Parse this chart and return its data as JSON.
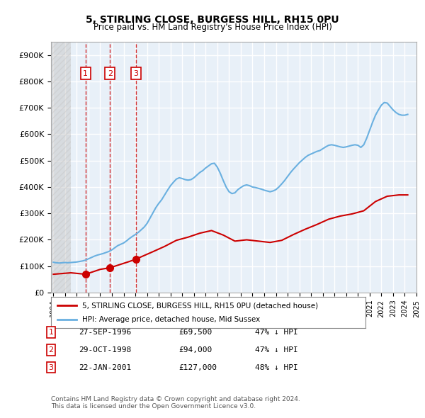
{
  "title": "5, STIRLING CLOSE, BURGESS HILL, RH15 0PU",
  "subtitle": "Price paid vs. HM Land Registry's House Price Index (HPI)",
  "xlabel": "",
  "ylabel": "",
  "ylim": [
    0,
    950000
  ],
  "yticks": [
    0,
    100000,
    200000,
    300000,
    400000,
    500000,
    600000,
    700000,
    800000,
    900000
  ],
  "ytick_labels": [
    "£0",
    "£100K",
    "£200K",
    "£300K",
    "£400K",
    "£500K",
    "£600K",
    "£700K",
    "£800K",
    "£900K"
  ],
  "background_color": "#ffffff",
  "plot_bg_color": "#e8f0f8",
  "grid_color": "#ffffff",
  "hpi_color": "#6ab0e0",
  "price_color": "#cc0000",
  "sale_marker_color": "#cc0000",
  "vline_color": "#cc0000",
  "legend_label_price": "5, STIRLING CLOSE, BURGESS HILL, RH15 0PU (detached house)",
  "legend_label_hpi": "HPI: Average price, detached house, Mid Sussex",
  "transactions": [
    {
      "num": 1,
      "date": "27-SEP-1996",
      "price": 69500,
      "year": 1996.75,
      "hpi_pct": "47% ↓ HPI"
    },
    {
      "num": 2,
      "date": "29-OCT-1998",
      "price": 94000,
      "year": 1998.83,
      "hpi_pct": "47% ↓ HPI"
    },
    {
      "num": 3,
      "date": "22-JAN-2001",
      "price": 127000,
      "year": 2001.06,
      "hpi_pct": "48% ↓ HPI"
    }
  ],
  "copyright_text": "Contains HM Land Registry data © Crown copyright and database right 2024.\nThis data is licensed under the Open Government Licence v3.0.",
  "hpi_data_x": [
    1994.0,
    1994.25,
    1994.5,
    1994.75,
    1995.0,
    1995.25,
    1995.5,
    1995.75,
    1996.0,
    1996.25,
    1996.5,
    1996.75,
    1997.0,
    1997.25,
    1997.5,
    1997.75,
    1998.0,
    1998.25,
    1998.5,
    1998.75,
    1999.0,
    1999.25,
    1999.5,
    1999.75,
    2000.0,
    2000.25,
    2000.5,
    2000.75,
    2001.0,
    2001.25,
    2001.5,
    2001.75,
    2002.0,
    2002.25,
    2002.5,
    2002.75,
    2003.0,
    2003.25,
    2003.5,
    2003.75,
    2004.0,
    2004.25,
    2004.5,
    2004.75,
    2005.0,
    2005.25,
    2005.5,
    2005.75,
    2006.0,
    2006.25,
    2006.5,
    2006.75,
    2007.0,
    2007.25,
    2007.5,
    2007.75,
    2008.0,
    2008.25,
    2008.5,
    2008.75,
    2009.0,
    2009.25,
    2009.5,
    2009.75,
    2010.0,
    2010.25,
    2010.5,
    2010.75,
    2011.0,
    2011.25,
    2011.5,
    2011.75,
    2012.0,
    2012.25,
    2012.5,
    2012.75,
    2013.0,
    2013.25,
    2013.5,
    2013.75,
    2014.0,
    2014.25,
    2014.5,
    2014.75,
    2015.0,
    2015.25,
    2015.5,
    2015.75,
    2016.0,
    2016.25,
    2016.5,
    2016.75,
    2017.0,
    2017.25,
    2017.5,
    2017.75,
    2018.0,
    2018.25,
    2018.5,
    2018.75,
    2019.0,
    2019.25,
    2019.5,
    2019.75,
    2020.0,
    2020.25,
    2020.5,
    2020.75,
    2021.0,
    2021.25,
    2021.5,
    2021.75,
    2022.0,
    2022.25,
    2022.5,
    2022.75,
    2023.0,
    2023.25,
    2023.5,
    2023.75,
    2024.0,
    2024.25
  ],
  "hpi_data_y": [
    115000,
    113000,
    112000,
    113000,
    114000,
    113000,
    114000,
    115000,
    116000,
    118000,
    120000,
    123000,
    128000,
    133000,
    138000,
    142000,
    145000,
    148000,
    152000,
    156000,
    162000,
    170000,
    178000,
    183000,
    188000,
    196000,
    205000,
    213000,
    220000,
    228000,
    238000,
    248000,
    262000,
    282000,
    302000,
    322000,
    338000,
    352000,
    370000,
    388000,
    405000,
    418000,
    430000,
    435000,
    432000,
    428000,
    426000,
    428000,
    435000,
    445000,
    455000,
    462000,
    472000,
    480000,
    488000,
    490000,
    475000,
    452000,
    425000,
    400000,
    382000,
    375000,
    378000,
    390000,
    398000,
    405000,
    408000,
    405000,
    400000,
    398000,
    395000,
    392000,
    388000,
    385000,
    382000,
    385000,
    390000,
    400000,
    412000,
    425000,
    440000,
    455000,
    468000,
    480000,
    492000,
    502000,
    512000,
    520000,
    525000,
    530000,
    535000,
    538000,
    545000,
    552000,
    558000,
    560000,
    558000,
    555000,
    552000,
    550000,
    552000,
    555000,
    558000,
    560000,
    558000,
    550000,
    560000,
    585000,
    615000,
    645000,
    672000,
    692000,
    710000,
    720000,
    718000,
    705000,
    692000,
    682000,
    675000,
    672000,
    672000,
    675000
  ],
  "price_data_x": [
    1994.0,
    1995.5,
    1996.75,
    1998.0,
    1998.83,
    2000.5,
    2001.06,
    2002.5,
    2003.5,
    2004.5,
    2005.5,
    2006.5,
    2007.5,
    2008.5,
    2009.5,
    2010.5,
    2011.5,
    2012.5,
    2013.5,
    2014.5,
    2015.5,
    2016.5,
    2017.5,
    2018.5,
    2019.5,
    2020.5,
    2021.5,
    2022.5,
    2023.5,
    2024.25
  ],
  "price_data_y": [
    69500,
    75000,
    69500,
    88000,
    94000,
    118000,
    127000,
    155000,
    175000,
    198000,
    210000,
    225000,
    235000,
    218000,
    195000,
    200000,
    195000,
    190000,
    198000,
    220000,
    240000,
    258000,
    278000,
    290000,
    298000,
    310000,
    345000,
    365000,
    370000,
    370000
  ],
  "hatch_end_year": 1995.5,
  "xlim": [
    1993.8,
    2025.0
  ]
}
